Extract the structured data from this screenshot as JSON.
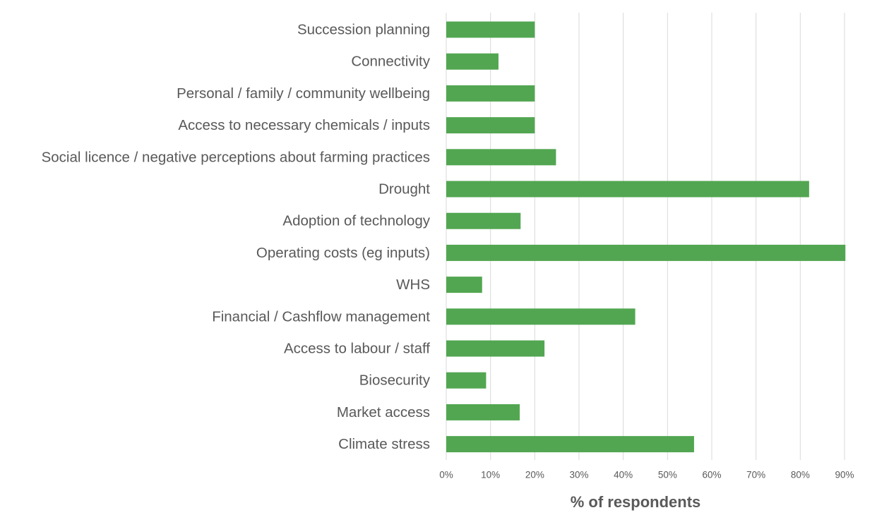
{
  "chart_data": {
    "type": "bar",
    "orientation": "horizontal",
    "title": "",
    "xlabel": "% of respondents",
    "ylabel": "",
    "categories": [
      "Succession planning",
      "Connectivity",
      "Personal / family / community wellbeing",
      "Access to necessary chemicals / inputs",
      "Social licence / negative perceptions about farming practices",
      "Drought",
      "Adoption of technology",
      "Operating costs (eg inputs)",
      "WHS",
      "Financial / Cashflow management",
      "Access to labour / staff",
      "Biosecurity",
      "Market access",
      "Climate stress"
    ],
    "series": [
      {
        "name": "% of respondents",
        "values": [
          20,
          11.8,
          20,
          20,
          24.8,
          82,
          16.8,
          90.2,
          8.1,
          42.7,
          22.2,
          9,
          16.6,
          56
        ]
      }
    ],
    "xlim": [
      0,
      90
    ],
    "xticks": [
      0,
      10,
      20,
      30,
      40,
      50,
      60,
      70,
      80,
      90
    ],
    "xtick_labels": [
      "0%",
      "10%",
      "20%",
      "30%",
      "40%",
      "50%",
      "60%",
      "70%",
      "80%",
      "90%"
    ],
    "grid": "vertical",
    "legend": "none",
    "colors": {
      "bar": "#52a651",
      "grid": "#d9d9d9",
      "label": "#595959",
      "axis_title": "#595959"
    }
  }
}
